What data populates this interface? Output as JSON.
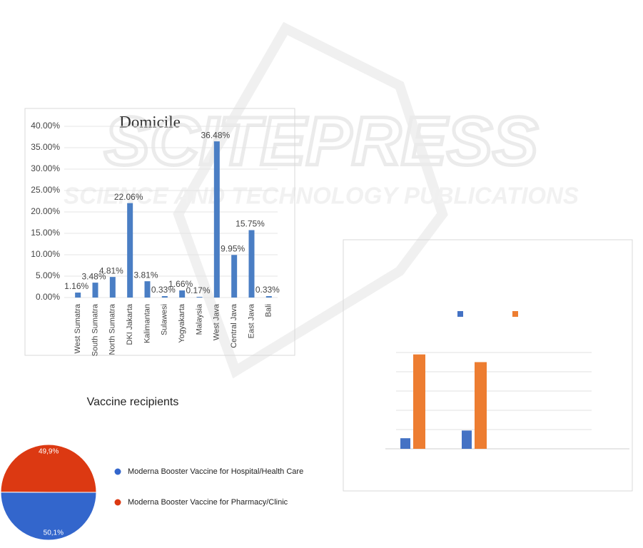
{
  "watermark": {
    "title": "SCITEPRESS",
    "subtitle": "SCIENCE AND TECHNOLOGY PUBLICATIONS"
  },
  "chart_data": [
    {
      "type": "bar",
      "title": "Domicile",
      "categories": [
        "West Sumatra",
        "South Sumatra",
        "North Sumatra",
        "DKI Jakarta",
        "Kalimantan",
        "Sulawesi",
        "Yogyakarta",
        "Malaysia",
        "West Java",
        "Central Java",
        "East Java",
        "Bali"
      ],
      "values": [
        1.16,
        3.48,
        4.81,
        22.06,
        3.81,
        0.33,
        1.66,
        0.17,
        36.48,
        9.95,
        15.75,
        0.33
      ],
      "value_labels": [
        "1.16%",
        "3.48%",
        "4.81%",
        "22.06%",
        "3.81%",
        "0.33%",
        "1.66%",
        "0.17%",
        "36.48%",
        "9.95%",
        "15.75%",
        "0.33%"
      ],
      "color": "#4a7ec4",
      "ylim": [
        0,
        40
      ],
      "grid": true,
      "yticks": [
        {
          "value": 0,
          "label": "0.00%"
        },
        {
          "value": 5,
          "label": "5.00%"
        },
        {
          "value": 10,
          "label": "10.00%"
        },
        {
          "value": 15,
          "label": "15.00%"
        },
        {
          "value": 20,
          "label": "20.00%"
        },
        {
          "value": 25,
          "label": "25.00%"
        },
        {
          "value": 30,
          "label": "30.00%"
        },
        {
          "value": 35,
          "label": "35.00%"
        },
        {
          "value": 40,
          "label": "40.00%"
        }
      ]
    },
    {
      "type": "pie",
      "title": "Vaccine recipients",
      "categories": [
        "Moderna Booster Vaccine for Hospital/Health Care",
        "Moderna Booster Vaccine for Pharmacy/Clinic"
      ],
      "values": [
        50.1,
        49.9
      ],
      "value_labels": [
        "50,1%",
        "49,9%"
      ],
      "colors": [
        "#3366cc",
        "#dc3912"
      ]
    },
    {
      "type": "grouped-bar",
      "categories": [
        null,
        null,
        null
      ],
      "series": [
        {
          "color": "#4472c4",
          "values": [
            0.55,
            0.95,
            null
          ]
        },
        {
          "color": "#ed7d31",
          "values": [
            4.9,
            4.5,
            null
          ]
        }
      ],
      "ylim": [
        0,
        5
      ],
      "yticks": [
        0,
        1,
        2,
        3,
        4,
        5
      ],
      "grid": true
    }
  ]
}
